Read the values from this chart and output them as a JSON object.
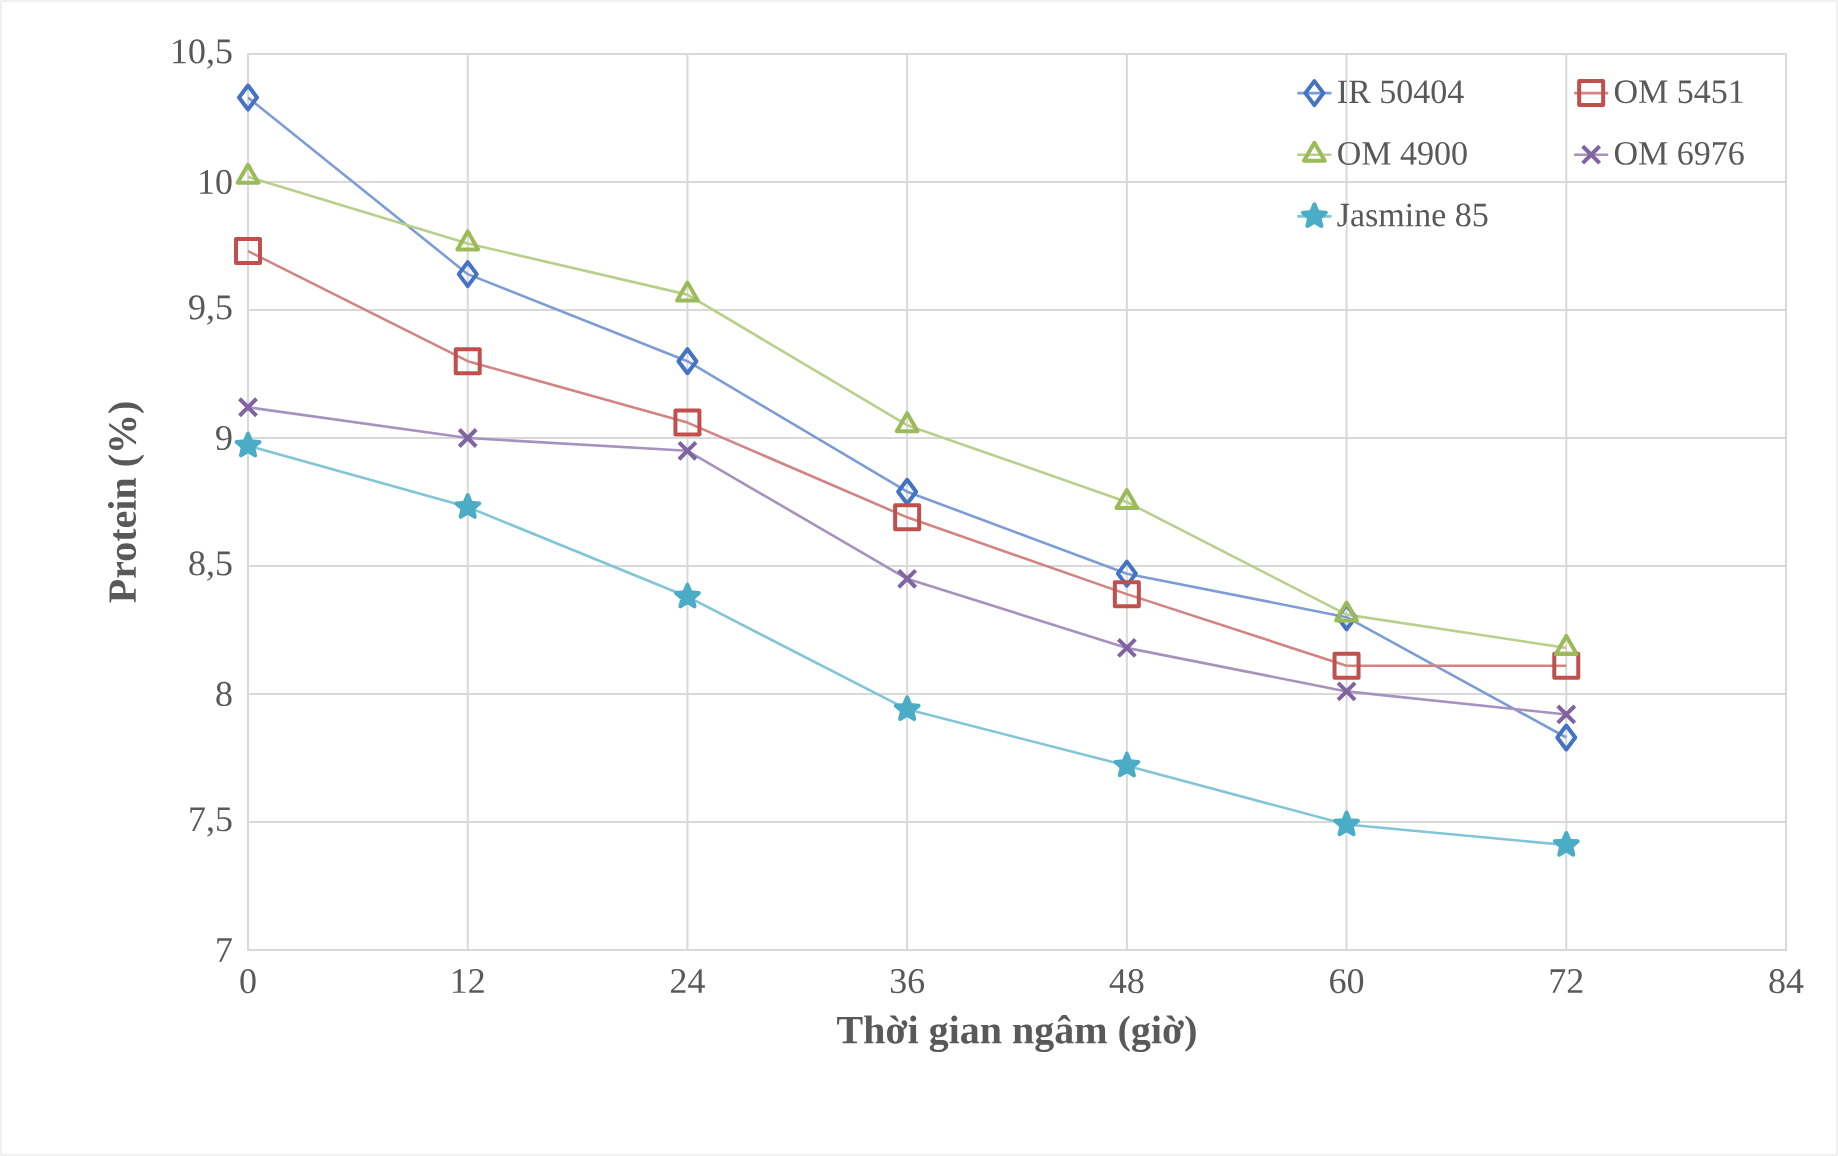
{
  "chart_data": {
    "type": "line",
    "xlabel": "Thời gian ngâm (giờ)",
    "ylabel": "Protein (%)",
    "x": [
      0,
      12,
      24,
      36,
      48,
      60,
      72
    ],
    "xlim": [
      0,
      84
    ],
    "xticks": [
      0,
      12,
      24,
      36,
      48,
      60,
      72,
      84
    ],
    "ylim": [
      7,
      10.5
    ],
    "yticks": [
      7,
      {
        "value": 7.5,
        "label": "7,5"
      },
      8,
      {
        "value": 8.5,
        "label": "8,5"
      },
      9,
      {
        "value": 9.5,
        "label": "9,5"
      },
      10,
      {
        "value": 10.5,
        "label": "10,5"
      }
    ],
    "grid": true,
    "legend": "top right",
    "line_style": "solid",
    "series": [
      {
        "name": "IR 50404",
        "color": "#4472c4",
        "marker": "diamond",
        "values": [
          10.33,
          9.64,
          9.3,
          8.79,
          8.47,
          8.3,
          7.83
        ]
      },
      {
        "name": "OM 5451",
        "color": "#c0504d",
        "marker": "square",
        "values": [
          9.73,
          9.3,
          9.06,
          8.69,
          8.39,
          8.11,
          8.11
        ]
      },
      {
        "name": "OM 4900",
        "color": "#9bbb59",
        "marker": "triangle",
        "values": [
          10.02,
          9.76,
          9.56,
          9.05,
          8.75,
          8.31,
          8.18
        ]
      },
      {
        "name": "OM 6976",
        "color": "#8064a2",
        "marker": "cross",
        "values": [
          9.12,
          9.0,
          8.95,
          8.45,
          8.18,
          8.01,
          7.92
        ]
      },
      {
        "name": "Jasmine 85",
        "color": "#4bacc6",
        "marker": "star",
        "values": [
          8.97,
          8.73,
          8.38,
          7.94,
          7.72,
          7.49,
          7.41
        ]
      }
    ]
  }
}
